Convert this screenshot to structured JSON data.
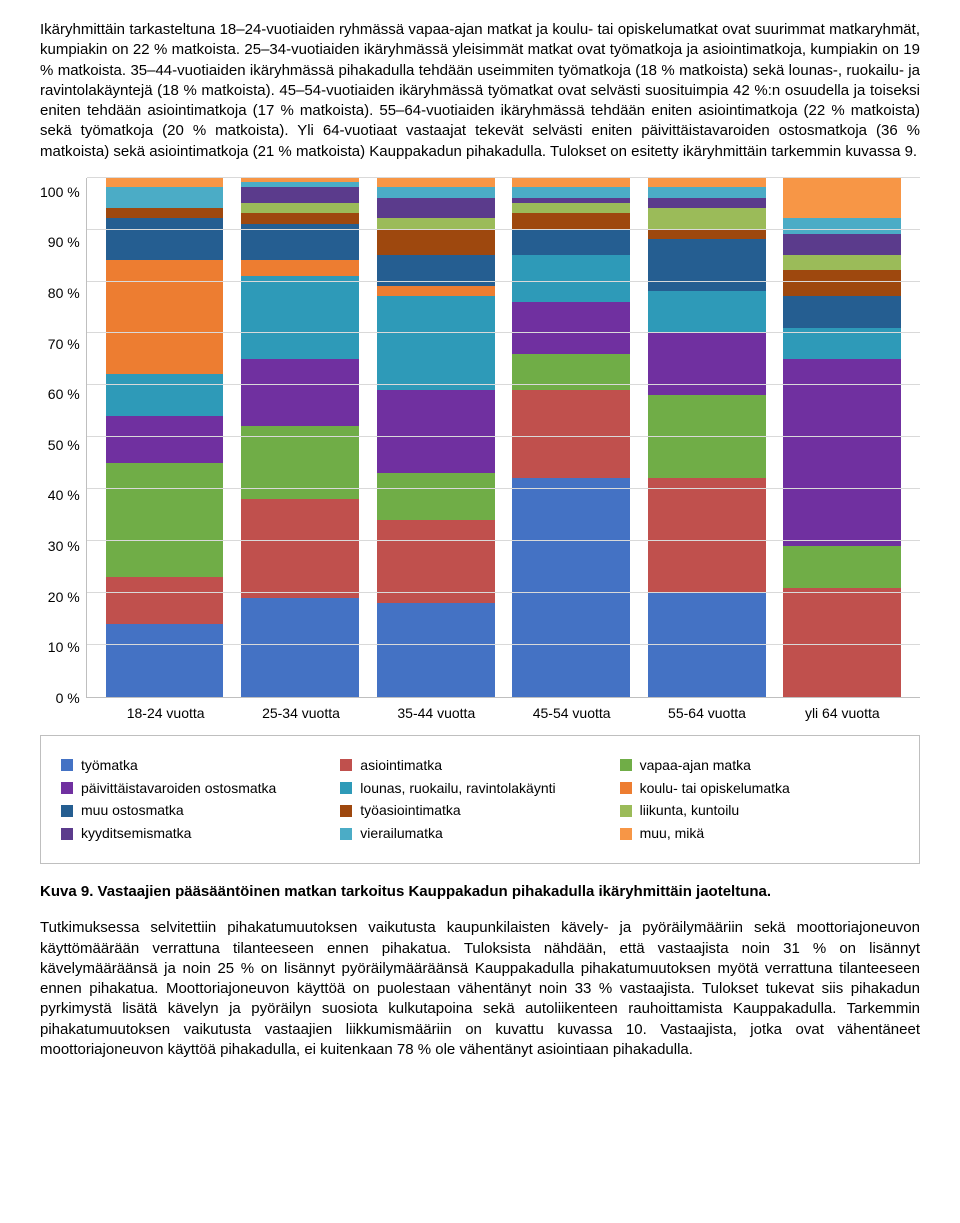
{
  "paragraphs": {
    "p1": "Ikäryhmittäin tarkasteltuna 18–24-vuotiaiden ryhmässä vapaa-ajan matkat ja koulu- tai opiskelumatkat ovat suurimmat matkaryhmät, kumpiakin on 22 % matkoista. 25–34-vuotiaiden ikäryhmässä yleisimmät matkat ovat työmatkoja ja asiointimatkoja, kumpiakin on 19 % matkoista. 35–44-vuotiaiden ikäryhmässä pihakadulla tehdään useimmiten työmatkoja (18 % matkoista) sekä lounas-, ruokailu- ja ravintolakäyntejä (18 % matkoista). 45–54-vuotiaiden ikäryhmässä työmatkat ovat selvästi suosituimpia 42 %:n osuudella ja toiseksi eniten tehdään asiointimatkoja (17 % matkoista). 55–64-vuotiaiden ikäryhmässä tehdään eniten asiointimatkoja (22 % matkoista) sekä työmatkoja (20 % matkoista). Yli 64-vuotiaat vastaajat tekevät selvästi eniten päivittäistavaroiden ostosmatkoja (36 % matkoista) sekä asiointimatkoja (21 % matkoista) Kauppakadun pihakadulla. Tulokset on esitetty ikäryhmittäin tarkemmin kuvassa 9.",
    "p2": "Tutkimuksessa selvitettiin pihakatumuutoksen vaikutusta kaupunkilaisten kävely- ja pyöräilymääriin sekä moottoriajoneuvon käyttömäärään verrattuna tilanteeseen ennen pihakatua. Tuloksista nähdään, että vastaajista noin 31 % on lisännyt kävelymääräänsä ja noin 25 % on lisännyt pyöräilymääräänsä Kauppakadulla pihakatumuutoksen myötä verrattuna tilanteeseen ennen pihakatua. Moottoriajoneuvon käyttöä on puolestaan vähentänyt noin 33 % vastaajista. Tulokset tukevat siis pihakadun pyrkimystä lisätä kävelyn ja pyöräilyn suosiota kulkutapoina sekä autoliikenteen rauhoittamista Kauppakadulla. Tarkemmin pihakatumuutoksen vaikutusta vastaajien liikkumismääriin on kuvattu kuvassa 10. Vastaajista, jotka ovat vähentäneet moottoriajoneuvon käyttöä pihakadulla, ei kuitenkaan 78 % ole vähentänyt asiointiaan pihakadulla."
  },
  "caption": {
    "label": "Kuva 9.",
    "text": " Vastaajien pääsääntöinen matkan tarkoitus Kauppakadun pihakadulla ikäryhmittäin jaoteltuna."
  },
  "chart": {
    "type": "stacked-bar-percent",
    "ylim": [
      0,
      100
    ],
    "ytick_step": 10,
    "yticks": [
      "0 %",
      "10 %",
      "20 %",
      "30 %",
      "40 %",
      "50 %",
      "60 %",
      "70 %",
      "80 %",
      "90 %",
      "100 %"
    ],
    "grid_color": "#d9d9d9",
    "axis_color": "#bfbfbf",
    "background_color": "#ffffff",
    "label_fontsize": 14,
    "categories": [
      "18-24 vuotta",
      "25-34 vuotta",
      "35-44 vuotta",
      "45-54 vuotta",
      "55-64 vuotta",
      "yli 64 vuotta"
    ],
    "series": [
      {
        "key": "tyomatka",
        "label": "työmatka",
        "color": "#4472c4"
      },
      {
        "key": "asiointi",
        "label": "asiointimatka",
        "color": "#c0504d"
      },
      {
        "key": "vapaa",
        "label": "vapaa-ajan matka",
        "color": "#70ad47"
      },
      {
        "key": "paivittais",
        "label": "päivittäistavaroiden ostosmatka",
        "color": "#7030a0"
      },
      {
        "key": "lounas",
        "label": "lounas, ruokailu, ravintolakäynti",
        "color": "#2e9ab8"
      },
      {
        "key": "koulu",
        "label": "koulu- tai opiskelumatka",
        "color": "#ed7d31"
      },
      {
        "key": "muuostos",
        "label": "muu ostosmatka",
        "color": "#255e91"
      },
      {
        "key": "tyoasiointi",
        "label": "työasiointimatka",
        "color": "#9e480e"
      },
      {
        "key": "liikunta",
        "label": "liikunta, kuntoilu",
        "color": "#9bbb59"
      },
      {
        "key": "kyyditsemis",
        "label": "kyyditsemismatka",
        "color": "#5b3b8c"
      },
      {
        "key": "vierailu",
        "label": "vierailumatka",
        "color": "#4bacc6"
      },
      {
        "key": "muu",
        "label": "muu, mikä",
        "color": "#f79646"
      }
    ],
    "data": {
      "18-24 vuotta": {
        "tyomatka": 14,
        "asiointi": 9,
        "vapaa": 22,
        "paivittais": 9,
        "lounas": 8,
        "koulu": 22,
        "muuostos": 8,
        "tyoasiointi": 2,
        "liikunta": 0,
        "kyyditsemis": 0,
        "vierailu": 4,
        "muu": 2
      },
      "25-34 vuotta": {
        "tyomatka": 19,
        "asiointi": 19,
        "vapaa": 14,
        "paivittais": 13,
        "lounas": 16,
        "koulu": 3,
        "muuostos": 7,
        "tyoasiointi": 2,
        "liikunta": 2,
        "kyyditsemis": 3,
        "vierailu": 1,
        "muu": 1
      },
      "35-44 vuotta": {
        "tyomatka": 18,
        "asiointi": 16,
        "vapaa": 9,
        "paivittais": 16,
        "lounas": 18,
        "koulu": 2,
        "muuostos": 6,
        "tyoasiointi": 5,
        "liikunta": 2,
        "kyyditsemis": 4,
        "vierailu": 2,
        "muu": 2
      },
      "45-54 vuotta": {
        "tyomatka": 42,
        "asiointi": 17,
        "vapaa": 7,
        "paivittais": 10,
        "lounas": 9,
        "koulu": 0,
        "muuostos": 5,
        "tyoasiointi": 3,
        "liikunta": 2,
        "kyyditsemis": 1,
        "vierailu": 2,
        "muu": 2
      },
      "55-64 vuotta": {
        "tyomatka": 20,
        "asiointi": 22,
        "vapaa": 16,
        "paivittais": 12,
        "lounas": 8,
        "koulu": 0,
        "muuostos": 10,
        "tyoasiointi": 2,
        "liikunta": 4,
        "kyyditsemis": 2,
        "vierailu": 2,
        "muu": 2
      },
      "yli 64 vuotta": {
        "tyomatka": 0,
        "asiointi": 21,
        "vapaa": 8,
        "paivittais": 36,
        "lounas": 6,
        "koulu": 0,
        "muuostos": 6,
        "tyoasiointi": 5,
        "liikunta": 3,
        "kyyditsemis": 4,
        "vierailu": 3,
        "muu": 8
      }
    }
  }
}
